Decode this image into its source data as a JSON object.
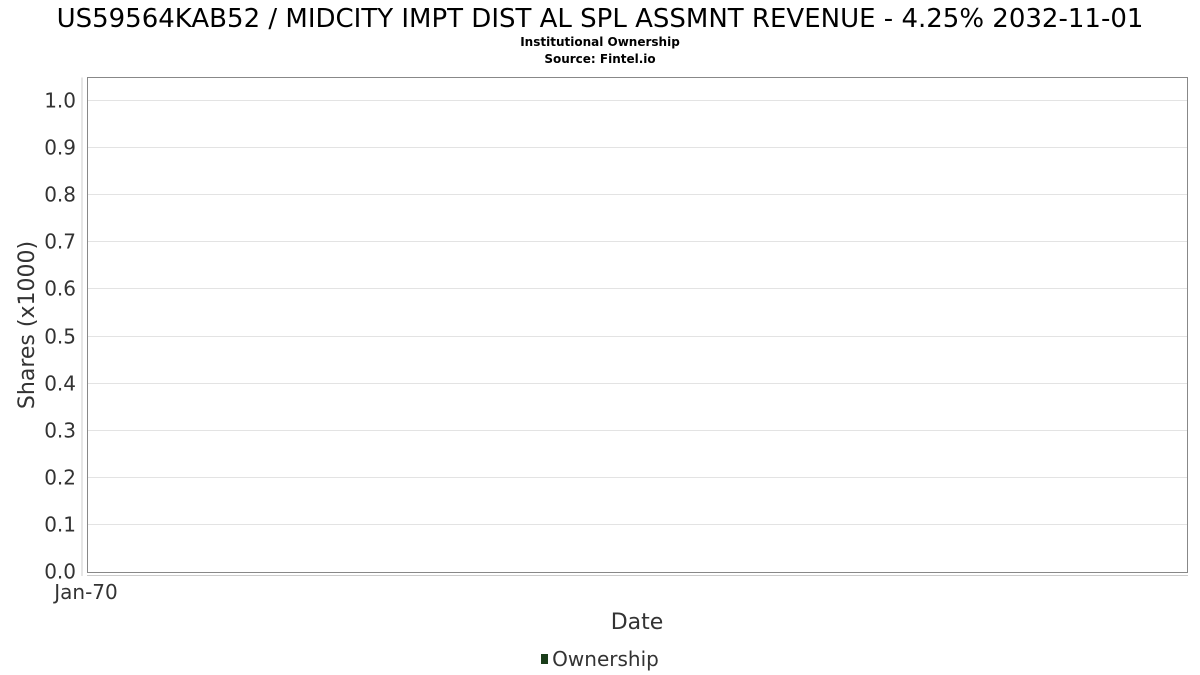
{
  "header": {
    "title": "US59564KAB52 / MIDCITY IMPT DIST AL SPL ASSMNT REVENUE - 4.25% 2032-11-01",
    "subtitle": "Institutional Ownership",
    "source": "Source: Fintel.io"
  },
  "colors": {
    "series": "#1a3d1a",
    "frame": "#888888",
    "grid": "#e3e3e3"
  },
  "chart_data": {
    "type": "area",
    "title": "US59564KAB52 / MIDCITY IMPT DIST AL SPL ASSMNT REVENUE - 4.25% 2032-11-01",
    "subtitle": "Institutional Ownership",
    "xlabel": "Date",
    "ylabel": "Shares (x1000)",
    "ylim": [
      0,
      1.05
    ],
    "yticks": [
      "0.0",
      "0.1",
      "0.2",
      "0.3",
      "0.4",
      "0.5",
      "0.6",
      "0.7",
      "0.8",
      "0.9",
      "1.0"
    ],
    "xticks": [
      "Jan-70"
    ],
    "grid": true,
    "legend_position": "bottom",
    "series": [
      {
        "name": "Ownership",
        "x": [],
        "values": []
      }
    ]
  }
}
